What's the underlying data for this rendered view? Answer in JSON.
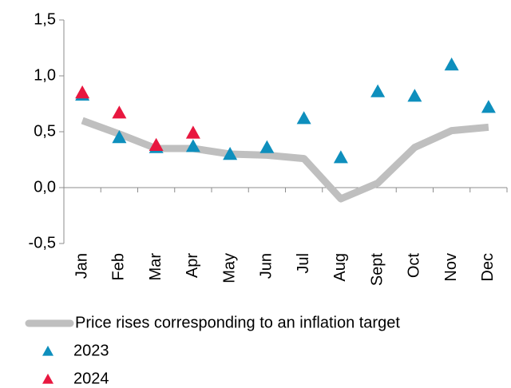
{
  "chart_data": {
    "type": "line",
    "categories": [
      "Jan",
      "Feb",
      "Mar",
      "Apr",
      "May",
      "Jun",
      "Jul",
      "Aug",
      "Sept",
      "Oct",
      "Nov",
      "Dec"
    ],
    "series": [
      {
        "name": "Price rises corresponding to an inflation target",
        "color": "#bfbfbf",
        "marker": "none",
        "values": [
          0.6,
          0.48,
          0.35,
          0.35,
          0.3,
          0.29,
          0.26,
          -0.1,
          0.04,
          0.36,
          0.51,
          0.54
        ]
      },
      {
        "name": "2023",
        "color": "#0e8fbd",
        "marker": "triangle",
        "values": [
          0.83,
          0.45,
          0.36,
          0.37,
          0.3,
          0.36,
          0.62,
          0.27,
          0.86,
          0.82,
          1.1,
          0.72
        ]
      },
      {
        "name": "2024",
        "color": "#e8173f",
        "marker": "triangle",
        "values": [
          0.85,
          0.67,
          0.38,
          0.49,
          null,
          null,
          null,
          null,
          null,
          null,
          null,
          null
        ]
      }
    ],
    "ylim": [
      -0.5,
      1.5
    ],
    "yticks": [
      {
        "value": -0.5,
        "label": "-0,5"
      },
      {
        "value": 0,
        "label": "0,0"
      },
      {
        "value": 0.5,
        "label": "0,5"
      },
      {
        "value": 1,
        "label": "1,0"
      },
      {
        "value": 1.5,
        "label": "1,5"
      }
    ],
    "grid": false
  }
}
